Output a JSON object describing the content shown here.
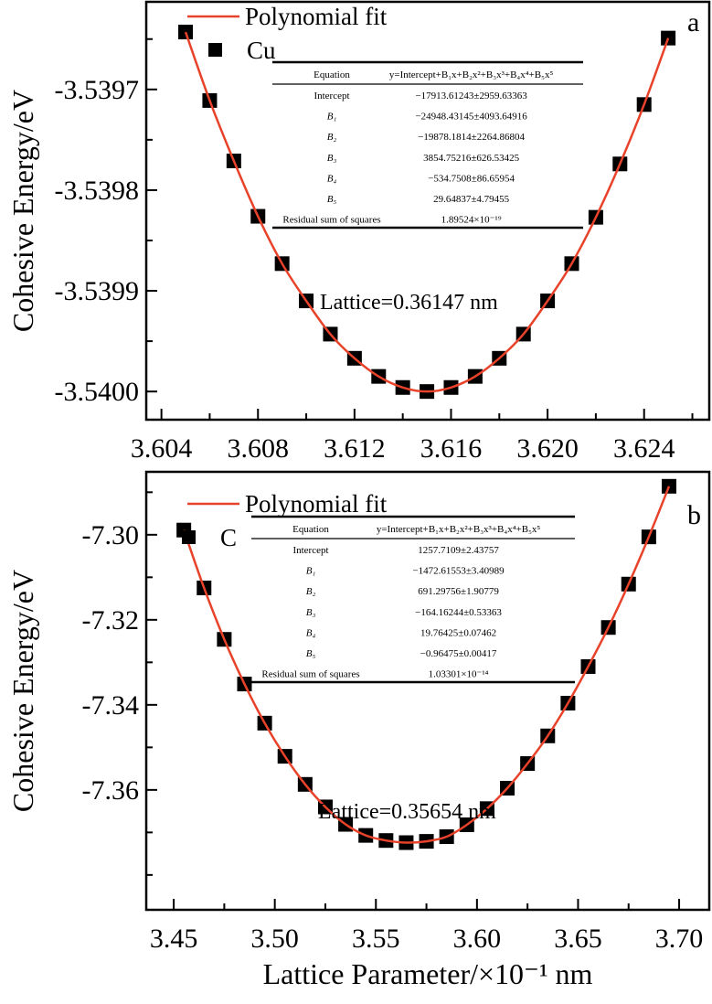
{
  "chart_data": [
    {
      "type": "scatter",
      "panel_label": "a",
      "ylabel": "Cohesive Energy/eV",
      "xlabel": "",
      "legend": [
        "Polynomial fit",
        "Cu"
      ],
      "legend_placement": "top-left",
      "annotation": "Lattice=0.36147 nm",
      "xlim": [
        3.60337,
        3.6267
      ],
      "ylim": [
        -3.540028,
        -3.539613
      ],
      "xticks": [
        "3.604",
        "3.608",
        "3.612",
        "3.616",
        "3.620",
        "3.624"
      ],
      "xtick_values": [
        3.604,
        3.608,
        3.612,
        3.616,
        3.62,
        3.624
      ],
      "yticks": [
        "-3.5397",
        "-3.5398",
        "-3.5399",
        "-3.5400"
      ],
      "ytick_values": [
        -3.5397,
        -3.5398,
        -3.5399,
        -3.54
      ],
      "x": [
        3.605,
        3.606,
        3.607,
        3.608,
        3.609,
        3.61,
        3.611,
        3.612,
        3.613,
        3.614,
        3.615,
        3.616,
        3.617,
        3.618,
        3.619,
        3.62,
        3.621,
        3.622,
        3.623,
        3.624,
        3.625
      ],
      "y": [
        -3.539643,
        -3.539711,
        -3.539771,
        -3.539826,
        -3.539873,
        -3.53991,
        -3.539943,
        -3.539967,
        -3.539985,
        -3.539996,
        -3.54,
        -3.539996,
        -3.539985,
        -3.539967,
        -3.539943,
        -3.53991,
        -3.539873,
        -3.539827,
        -3.539774,
        -3.539715,
        -3.539649
      ],
      "series_color": "#e8432a",
      "fit_table": {
        "header": [
          "Equation",
          "y=Intercept+B₁x+B₂x²+B₃x³+B₄x⁴+B₅x⁵"
        ],
        "rows": [
          [
            "Intercept",
            "−17913.61243±2959.63363"
          ],
          [
            "B₁",
            "−24948.43145±4093.64916"
          ],
          [
            "B₂",
            "−19878.1814±2264.86804"
          ],
          [
            "B₃",
            "3854.75216±626.53425"
          ],
          [
            "B₄",
            "−534.7508±86.65954"
          ],
          [
            "B₅",
            "29.64837±4.79455"
          ],
          [
            "Residual sum of squares",
            "1.89524×10⁻¹⁹"
          ]
        ]
      }
    },
    {
      "type": "scatter",
      "panel_label": "b",
      "ylabel": "Cohesive Energy/eV",
      "xlabel": "Lattice Parameter/×10⁻¹ nm",
      "legend": [
        "Polynomial fit",
        "C"
      ],
      "legend_placement": "top-left",
      "annotation": "Lattice=0.35654 nm",
      "xlim": [
        3.4364,
        3.7149
      ],
      "ylim": [
        -7.3882,
        -7.2852
      ],
      "xticks": [
        "3.45",
        "3.50",
        "3.55",
        "3.60",
        "3.65",
        "3.70"
      ],
      "xtick_values": [
        3.45,
        3.5,
        3.55,
        3.6,
        3.65,
        3.7
      ],
      "yticks": [
        "-7.30",
        "-7.32",
        "-7.34",
        "-7.36"
      ],
      "ytick_values": [
        -7.3,
        -7.32,
        -7.34,
        -7.36
      ],
      "x": [
        3.455,
        3.465,
        3.475,
        3.485,
        3.495,
        3.505,
        3.515,
        3.525,
        3.535,
        3.545,
        3.555,
        3.565,
        3.575,
        3.585,
        3.595,
        3.605,
        3.615,
        3.625,
        3.635,
        3.645,
        3.655,
        3.665,
        3.675,
        3.685,
        3.695
      ],
      "y": [
        -7.2989,
        -7.3125,
        -7.3246,
        -7.3351,
        -7.3443,
        -7.3521,
        -7.3587,
        -7.364,
        -7.3681,
        -7.3707,
        -7.3719,
        -7.3724,
        -7.3721,
        -7.371,
        -7.3682,
        -7.3644,
        -7.3596,
        -7.3538,
        -7.3473,
        -7.3396,
        -7.331,
        -7.3218,
        -7.3116,
        -7.3005,
        -7.2886
      ],
      "series_color": "#e8432a",
      "fit_table": {
        "header": [
          "Equation",
          "y=Intercept+B₁x+B₂x²+B₃x³+B₄x⁴+B₅x⁵"
        ],
        "rows": [
          [
            "Intercept",
            "1257.7109±2.43757"
          ],
          [
            "B₁",
            "−1472.61553±3.40989"
          ],
          [
            "B₂",
            "691.29756±1.90779"
          ],
          [
            "B₃",
            "−164.16244±0.53363"
          ],
          [
            "B₄",
            "19.76425±0.07462"
          ],
          [
            "B₅",
            "−0.96475±0.00417"
          ],
          [
            "Residual sum of squares",
            "1.03301×10⁻¹⁴"
          ]
        ]
      }
    }
  ]
}
